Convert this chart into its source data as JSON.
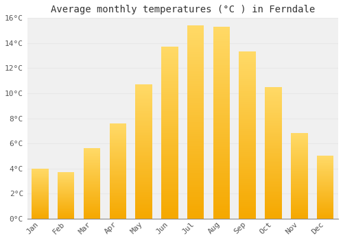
{
  "title": "Average monthly temperatures (°C ) in Ferndale",
  "months": [
    "Jan",
    "Feb",
    "Mar",
    "Apr",
    "May",
    "Jun",
    "Jul",
    "Aug",
    "Sep",
    "Oct",
    "Nov",
    "Dec"
  ],
  "values": [
    4.0,
    3.7,
    5.6,
    7.6,
    10.7,
    13.7,
    15.4,
    15.3,
    13.3,
    10.5,
    6.8,
    5.0
  ],
  "bar_color_bottom": "#F5A800",
  "bar_color_top": "#FFD966",
  "ylim": [
    0,
    16
  ],
  "yticks": [
    0,
    2,
    4,
    6,
    8,
    10,
    12,
    14,
    16
  ],
  "ytick_labels": [
    "0°C",
    "2°C",
    "4°C",
    "6°C",
    "8°C",
    "10°C",
    "12°C",
    "14°C",
    "16°C"
  ],
  "background_color": "#ffffff",
  "plot_bg_color": "#f0f0f0",
  "grid_color": "#e8e8e8",
  "title_fontsize": 10,
  "tick_fontsize": 8,
  "bar_width": 0.65,
  "n_segments": 80
}
